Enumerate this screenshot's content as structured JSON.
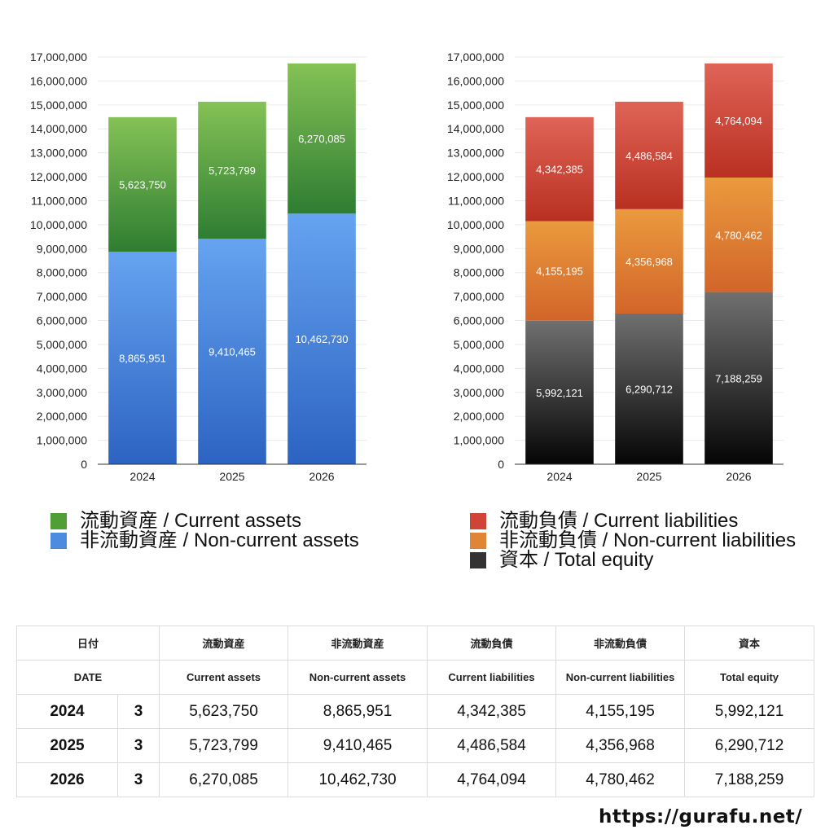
{
  "chart_data": [
    {
      "type": "bar",
      "stacked": true,
      "categories": [
        "2024",
        "2025",
        "2026"
      ],
      "series": [
        {
          "name": "非流動資産 / Non-current assets",
          "values": [
            8865951,
            9410465,
            10462730
          ],
          "color_top": "#66a3f0",
          "color_bottom": "#2c63c2"
        },
        {
          "name": "流動資産 / Current assets",
          "values": [
            5623750,
            5723799,
            6270085
          ],
          "color_top": "#85c256",
          "color_bottom": "#2e7d32"
        }
      ],
      "ylim": [
        0,
        17000000
      ],
      "yticks": [
        0,
        1000000,
        2000000,
        3000000,
        4000000,
        5000000,
        6000000,
        7000000,
        8000000,
        9000000,
        10000000,
        11000000,
        12000000,
        13000000,
        14000000,
        15000000,
        16000000,
        17000000
      ],
      "grid": true,
      "legend": "bottom"
    },
    {
      "type": "bar",
      "stacked": true,
      "categories": [
        "2024",
        "2025",
        "2026"
      ],
      "series": [
        {
          "name": "資本 / Total equity",
          "values": [
            5992121,
            6290712,
            7188259
          ],
          "color_top": "#707070",
          "color_bottom": "#050505"
        },
        {
          "name": "非流動負債 / Non-current liabilities",
          "values": [
            4155195,
            4356968,
            4780462
          ],
          "color_top": "#ea9a3e",
          "color_bottom": "#d2652a"
        },
        {
          "name": "流動負債 / Current liabilities",
          "values": [
            4342385,
            4486584,
            4764094
          ],
          "color_top": "#df6457",
          "color_bottom": "#b93021"
        }
      ],
      "ylim": [
        0,
        17000000
      ],
      "yticks": [
        0,
        1000000,
        2000000,
        3000000,
        4000000,
        5000000,
        6000000,
        7000000,
        8000000,
        9000000,
        10000000,
        11000000,
        12000000,
        13000000,
        14000000,
        15000000,
        16000000,
        17000000
      ],
      "grid": true,
      "legend": "bottom"
    }
  ],
  "legends": {
    "assets": [
      {
        "label": "流動資産 / Current assets",
        "color": "#4f9e36"
      },
      {
        "label": "非流動資産 / Non-current assets",
        "color": "#4d8be0"
      }
    ],
    "liabilities": [
      {
        "label": "流動負債 / Current liabilities",
        "color": "#cf4436"
      },
      {
        "label": "非流動負債 / Non-current liabilities",
        "color": "#e08435"
      },
      {
        "label": "資本 / Total equity",
        "color": "#333333"
      }
    ]
  },
  "table": {
    "headers_jp": [
      "日付",
      "流動資産",
      "非流動資産",
      "流動負債",
      "非流動負債",
      "資本"
    ],
    "headers_en": [
      "DATE",
      "Current assets",
      "Non-current assets",
      "Current liabilities",
      "Non-current liabilities",
      "Total equity"
    ],
    "rows": [
      {
        "year": "2024",
        "count": "3",
        "values": [
          "5,623,750",
          "8,865,951",
          "4,342,385",
          "4,155,195",
          "5,992,121"
        ]
      },
      {
        "year": "2025",
        "count": "3",
        "values": [
          "5,723,799",
          "9,410,465",
          "4,486,584",
          "4,356,968",
          "6,290,712"
        ]
      },
      {
        "year": "2026",
        "count": "3",
        "values": [
          "6,270,085",
          "10,462,730",
          "4,764,094",
          "4,780,462",
          "7,188,259"
        ]
      }
    ]
  },
  "watermark": "https://gurafu.net/"
}
